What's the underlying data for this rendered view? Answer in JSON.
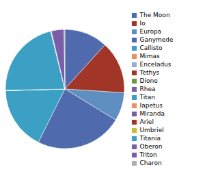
{
  "chart_data": {
    "type": "pie",
    "categories": [
      "The Moon",
      "Io",
      "Europa",
      "Ganymede",
      "Callisto",
      "Mimas",
      "Enceladus",
      "Tethys",
      "Dione",
      "Rhea",
      "Titan",
      "Iapetus",
      "Miranda",
      "Ariel",
      "Umbriel",
      "Titania",
      "Oberon",
      "Triton",
      "Charon"
    ],
    "values": [
      73460,
      89319,
      47998,
      148190,
      107590,
      37.49,
      10.8,
      61.76,
      109.57,
      230.63,
      134520,
      180.59,
      6.59,
      135.27,
      117.19,
      352.68,
      301.4,
      21390,
      1520
    ],
    "colors": [
      "#4F6BAE",
      "#A13628",
      "#5E8FC0",
      "#4F6BAE",
      "#3BA0C3",
      "#E8935C",
      "#9AABD6",
      "#A13628",
      "#6A9840",
      "#7B5EA8",
      "#3BA0C3",
      "#E8935C",
      "#7B5EA8",
      "#A13628",
      "#C8C030",
      "#3BA0C3",
      "#7B5EA8",
      "#7B5EA8",
      "#B0B0B0"
    ],
    "legend": "right"
  }
}
